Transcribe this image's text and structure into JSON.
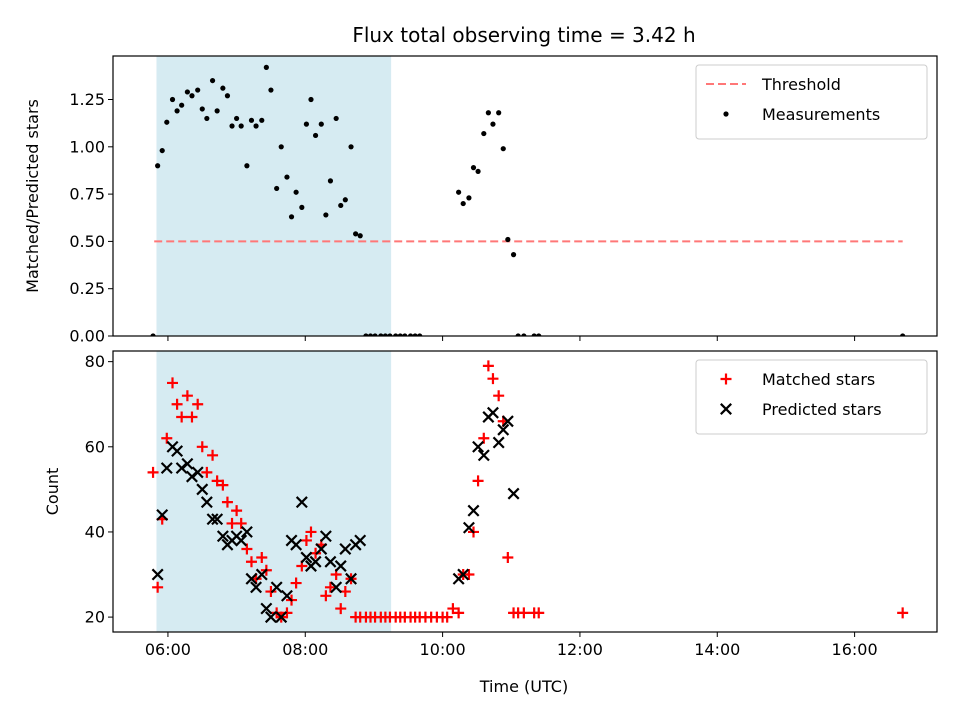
{
  "chart_data": {
    "title": "Flux total observing time = 3.42 h",
    "shaded_span": [
      "05:50",
      "09:15"
    ],
    "xlabel": "Time (UTC)",
    "xlim": [
      "05:12",
      "17:12"
    ],
    "xticks": [
      "06:00",
      "08:00",
      "10:00",
      "12:00",
      "14:00",
      "16:00"
    ],
    "panels": [
      {
        "type": "scatter",
        "ylabel": "Matched/Predicted stars",
        "ylim": [
          0,
          1.48
        ],
        "yticks": [
          "0.00",
          "0.25",
          "0.50",
          "0.75",
          "1.00",
          "1.25"
        ],
        "threshold": {
          "name": "Threshold",
          "value": 0.5,
          "x": [
            "05:48",
            "16:42"
          ],
          "color": "#ff7777"
        },
        "series": [
          {
            "name": "Measurements",
            "marker": "dot",
            "color": "#000000",
            "points": [
              [
                "05:47",
                0.0
              ],
              [
                "05:51",
                0.9
              ],
              [
                "05:55",
                0.98
              ],
              [
                "05:59",
                1.13
              ],
              [
                "06:04",
                1.25
              ],
              [
                "06:08",
                1.19
              ],
              [
                "06:12",
                1.22
              ],
              [
                "06:17",
                1.29
              ],
              [
                "06:21",
                1.27
              ],
              [
                "06:26",
                1.3
              ],
              [
                "06:30",
                1.2
              ],
              [
                "06:34",
                1.15
              ],
              [
                "06:39",
                1.35
              ],
              [
                "06:43",
                1.19
              ],
              [
                "06:48",
                1.31
              ],
              [
                "06:52",
                1.27
              ],
              [
                "06:56",
                1.11
              ],
              [
                "07:00",
                1.15
              ],
              [
                "07:04",
                1.11
              ],
              [
                "07:09",
                0.9
              ],
              [
                "07:13",
                1.14
              ],
              [
                "07:17",
                1.11
              ],
              [
                "07:22",
                1.14
              ],
              [
                "07:26",
                1.42
              ],
              [
                "07:30",
                1.3
              ],
              [
                "07:35",
                0.78
              ],
              [
                "07:39",
                1.0
              ],
              [
                "07:44",
                0.84
              ],
              [
                "07:48",
                0.63
              ],
              [
                "07:52",
                0.76
              ],
              [
                "07:57",
                0.68
              ],
              [
                "08:01",
                1.12
              ],
              [
                "08:05",
                1.25
              ],
              [
                "08:09",
                1.06
              ],
              [
                "08:14",
                1.12
              ],
              [
                "08:18",
                0.64
              ],
              [
                "08:22",
                0.82
              ],
              [
                "08:27",
                1.15
              ],
              [
                "08:31",
                0.69
              ],
              [
                "08:35",
                0.72
              ],
              [
                "08:40",
                1.0
              ],
              [
                "08:44",
                0.54
              ],
              [
                "08:48",
                0.53
              ],
              [
                "08:53",
                0.0
              ],
              [
                "08:57",
                0.0
              ],
              [
                "09:01",
                0.0
              ],
              [
                "09:06",
                0.0
              ],
              [
                "09:10",
                0.0
              ],
              [
                "09:14",
                0.0
              ],
              [
                "09:19",
                0.0
              ],
              [
                "09:23",
                0.0
              ],
              [
                "09:27",
                0.0
              ],
              [
                "09:32",
                0.0
              ],
              [
                "09:36",
                0.0
              ],
              [
                "09:40",
                0.0
              ],
              [
                "10:14",
                0.76
              ],
              [
                "10:18",
                0.7
              ],
              [
                "10:23",
                0.73
              ],
              [
                "10:27",
                0.89
              ],
              [
                "10:31",
                0.87
              ],
              [
                "10:36",
                1.07
              ],
              [
                "10:40",
                1.18
              ],
              [
                "10:44",
                1.12
              ],
              [
                "10:49",
                1.18
              ],
              [
                "10:53",
                0.99
              ],
              [
                "10:57",
                0.51
              ],
              [
                "11:02",
                0.43
              ],
              [
                "11:06",
                0.0
              ],
              [
                "11:11",
                0.0
              ],
              [
                "11:20",
                0.0
              ],
              [
                "11:24",
                0.0
              ],
              [
                "16:42",
                0.0
              ]
            ]
          }
        ]
      },
      {
        "type": "scatter",
        "ylabel": "Count",
        "ylim": [
          16.5,
          82.5
        ],
        "yticks": [
          "20",
          "40",
          "60",
          "80"
        ],
        "series": [
          {
            "name": "Matched stars",
            "marker": "plus",
            "color": "#ff0000",
            "points": [
              [
                "05:47",
                54
              ],
              [
                "05:51",
                27
              ],
              [
                "05:55",
                43
              ],
              [
                "05:59",
                62
              ],
              [
                "06:04",
                75
              ],
              [
                "06:08",
                70
              ],
              [
                "06:12",
                67
              ],
              [
                "06:17",
                72
              ],
              [
                "06:21",
                67
              ],
              [
                "06:26",
                70
              ],
              [
                "06:30",
                60
              ],
              [
                "06:34",
                54
              ],
              [
                "06:39",
                58
              ],
              [
                "06:43",
                52
              ],
              [
                "06:48",
                51
              ],
              [
                "06:52",
                47
              ],
              [
                "06:56",
                42
              ],
              [
                "07:00",
                45
              ],
              [
                "07:04",
                42
              ],
              [
                "07:09",
                36
              ],
              [
                "07:13",
                33
              ],
              [
                "07:17",
                29
              ],
              [
                "07:22",
                34
              ],
              [
                "07:26",
                31
              ],
              [
                "07:30",
                26
              ],
              [
                "07:35",
                21
              ],
              [
                "07:39",
                20
              ],
              [
                "07:44",
                21
              ],
              [
                "07:48",
                24
              ],
              [
                "07:52",
                28
              ],
              [
                "07:57",
                32
              ],
              [
                "08:01",
                38
              ],
              [
                "08:05",
                40
              ],
              [
                "08:09",
                35
              ],
              [
                "08:14",
                37
              ],
              [
                "08:18",
                25
              ],
              [
                "08:22",
                27
              ],
              [
                "08:27",
                30
              ],
              [
                "08:31",
                22
              ],
              [
                "08:35",
                26
              ],
              [
                "08:40",
                29
              ],
              [
                "08:44",
                20
              ],
              [
                "08:48",
                20
              ],
              [
                "08:53",
                20
              ],
              [
                "08:57",
                20
              ],
              [
                "09:01",
                20
              ],
              [
                "09:06",
                20
              ],
              [
                "09:10",
                20
              ],
              [
                "09:14",
                20
              ],
              [
                "09:19",
                20
              ],
              [
                "09:23",
                20
              ],
              [
                "09:27",
                20
              ],
              [
                "09:32",
                20
              ],
              [
                "09:36",
                20
              ],
              [
                "09:40",
                20
              ],
              [
                "09:45",
                20
              ],
              [
                "09:50",
                20
              ],
              [
                "09:55",
                20
              ],
              [
                "10:00",
                20
              ],
              [
                "10:04",
                20
              ],
              [
                "10:09",
                22
              ],
              [
                "10:14",
                21
              ],
              [
                "10:18",
                30
              ],
              [
                "10:23",
                30
              ],
              [
                "10:27",
                40
              ],
              [
                "10:31",
                52
              ],
              [
                "10:36",
                62
              ],
              [
                "10:40",
                79
              ],
              [
                "10:44",
                76
              ],
              [
                "10:49",
                72
              ],
              [
                "10:53",
                66
              ],
              [
                "10:57",
                34
              ],
              [
                "11:02",
                21
              ],
              [
                "11:06",
                21
              ],
              [
                "11:11",
                21
              ],
              [
                "11:20",
                21
              ],
              [
                "11:24",
                21
              ],
              [
                "16:42",
                21
              ]
            ]
          },
          {
            "name": "Predicted stars",
            "marker": "x",
            "color": "#000000",
            "points": [
              [
                "05:51",
                30
              ],
              [
                "05:55",
                44
              ],
              [
                "05:59",
                55
              ],
              [
                "06:04",
                60
              ],
              [
                "06:08",
                59
              ],
              [
                "06:12",
                55
              ],
              [
                "06:17",
                56
              ],
              [
                "06:21",
                53
              ],
              [
                "06:26",
                54
              ],
              [
                "06:30",
                50
              ],
              [
                "06:34",
                47
              ],
              [
                "06:39",
                43
              ],
              [
                "06:43",
                43
              ],
              [
                "06:48",
                39
              ],
              [
                "06:52",
                37
              ],
              [
                "06:56",
                38
              ],
              [
                "07:00",
                39
              ],
              [
                "07:04",
                38
              ],
              [
                "07:09",
                40
              ],
              [
                "07:13",
                29
              ],
              [
                "07:17",
                27
              ],
              [
                "07:22",
                30
              ],
              [
                "07:26",
                22
              ],
              [
                "07:30",
                20
              ],
              [
                "07:35",
                27
              ],
              [
                "07:39",
                20
              ],
              [
                "07:44",
                25
              ],
              [
                "07:48",
                38
              ],
              [
                "07:52",
                37
              ],
              [
                "07:57",
                47
              ],
              [
                "08:01",
                34
              ],
              [
                "08:05",
                32
              ],
              [
                "08:09",
                33
              ],
              [
                "08:14",
                36
              ],
              [
                "08:18",
                39
              ],
              [
                "08:22",
                33
              ],
              [
                "08:27",
                27
              ],
              [
                "08:31",
                32
              ],
              [
                "08:35",
                36
              ],
              [
                "08:40",
                29
              ],
              [
                "08:44",
                37
              ],
              [
                "08:48",
                38
              ],
              [
                "10:14",
                29
              ],
              [
                "10:18",
                30
              ],
              [
                "10:23",
                41
              ],
              [
                "10:27",
                45
              ],
              [
                "10:31",
                60
              ],
              [
                "10:36",
                58
              ],
              [
                "10:40",
                67
              ],
              [
                "10:44",
                68
              ],
              [
                "10:49",
                61
              ],
              [
                "10:53",
                64
              ],
              [
                "10:57",
                66
              ],
              [
                "11:02",
                49
              ]
            ]
          }
        ]
      }
    ]
  }
}
